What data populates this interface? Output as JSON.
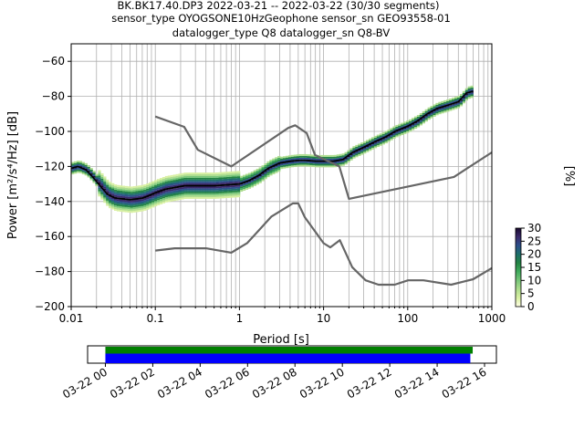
{
  "title": {
    "line1": "BK.BK17.40.DP3   2022-03-21 -- 2022-03-22  (30/30 segments)",
    "line2": "sensor_type OYOGSONE10HzGeophone sensor_sn GEO93558-01",
    "line3": "datalogger_type Q8 datalogger_sn Q8-BV"
  },
  "chart_data": [
    {
      "type": "heatmap",
      "xlabel": "Period [s]",
      "ylabel": "Power [m²/s⁴/Hz] [dB]",
      "x_scale": "log",
      "xlim": [
        0.01,
        1000
      ],
      "ylim": [
        -200,
        -50
      ],
      "x_tick_labels": [
        "0.01",
        "0.1",
        "1",
        "10",
        "100",
        "1000"
      ],
      "y_ticks": [
        -200,
        -180,
        -160,
        -140,
        -120,
        -100,
        -80,
        -60
      ],
      "y_tick_labels": [
        "−200",
        "−180",
        "−160",
        "−140",
        "−120",
        "−100",
        "−80",
        "−60"
      ],
      "grid": true,
      "colorbar": {
        "label": "[%]",
        "range": [
          0,
          30
        ],
        "ticks": [
          "0",
          "5",
          "10",
          "15",
          "20",
          "25",
          "30"
        ],
        "colors": [
          "#ffffe5",
          "#d9f0a3",
          "#addd8e",
          "#78c679",
          "#41ab5d",
          "#238443",
          "#1d6f6a",
          "#2c4f8a",
          "#3b2a6b",
          "#1a0a2e"
        ]
      },
      "series": [
        {
          "name": "",
          "role": "mean",
          "color": "#000000",
          "x": [
            0.01,
            0.012,
            0.015,
            0.018,
            0.022,
            0.027,
            0.033,
            0.04,
            0.05,
            0.06,
            0.07,
            0.08,
            0.1,
            0.13,
            0.17,
            0.22,
            0.3,
            0.4,
            0.5,
            0.7,
            1,
            1.3,
            1.7,
            2.2,
            3,
            4,
            5,
            6,
            8,
            10,
            13,
            17,
            22,
            30,
            40,
            55,
            70,
            100,
            130,
            170,
            220,
            300,
            400,
            500,
            600
          ],
          "y": [
            -121,
            -120,
            -122,
            -126,
            -131,
            -136,
            -138,
            -138.5,
            -139,
            -138.5,
            -138,
            -137,
            -135,
            -133,
            -132,
            -131,
            -131,
            -131,
            -131,
            -130.5,
            -130,
            -128,
            -125,
            -121,
            -118,
            -117,
            -116.5,
            -116.5,
            -117,
            -117,
            -117,
            -116,
            -112,
            -109,
            -106,
            -103,
            -100,
            -97,
            -94,
            -90,
            -87,
            -85,
            -83,
            -78,
            -77
          ]
        },
        {
          "name": "",
          "role": "NHNM",
          "color": "#666666",
          "x": [
            0.1,
            0.22,
            0.32,
            0.8,
            3.8,
            4.6,
            6.3,
            7.9,
            15.4,
            20,
            354.8,
            1000
          ],
          "y": [
            -91.5,
            -97.4,
            -110.5,
            -120,
            -98,
            -96.5,
            -101,
            -113.5,
            -120,
            -138.5,
            -126,
            -112
          ]
        },
        {
          "name": "",
          "role": "NLNM",
          "color": "#666666",
          "x": [
            0.1,
            0.17,
            0.4,
            0.8,
            1.24,
            2.4,
            4.3,
            5,
            6,
            10,
            12,
            15.6,
            21.9,
            31.6,
            45,
            70,
            101,
            154,
            328,
            600,
            1000
          ],
          "y": [
            -168,
            -166.7,
            -166.7,
            -169.2,
            -163.7,
            -148.6,
            -141.1,
            -141.1,
            -149,
            -163.8,
            -166.2,
            -162.1,
            -177.5,
            -185,
            -187.5,
            -187.5,
            -185,
            -185,
            -187.5,
            -184.4,
            -178
          ]
        }
      ]
    },
    {
      "type": "bar",
      "role": "data-availability",
      "x_tick_labels": [
        "03-22 00",
        "03-22 02",
        "03-22 04",
        "03-22 06",
        "03-22 08",
        "03-22 10",
        "03-22 12",
        "03-22 14",
        "03-22 16"
      ],
      "xlim_hours": [
        -0.75,
        16.5
      ],
      "series": [
        {
          "name": "",
          "color": "#008000",
          "start_hour": 0,
          "end_hour": 15.5
        },
        {
          "name": "",
          "color": "#0000ff",
          "start_hour": 0,
          "end_hour": 15.4
        }
      ]
    }
  ]
}
